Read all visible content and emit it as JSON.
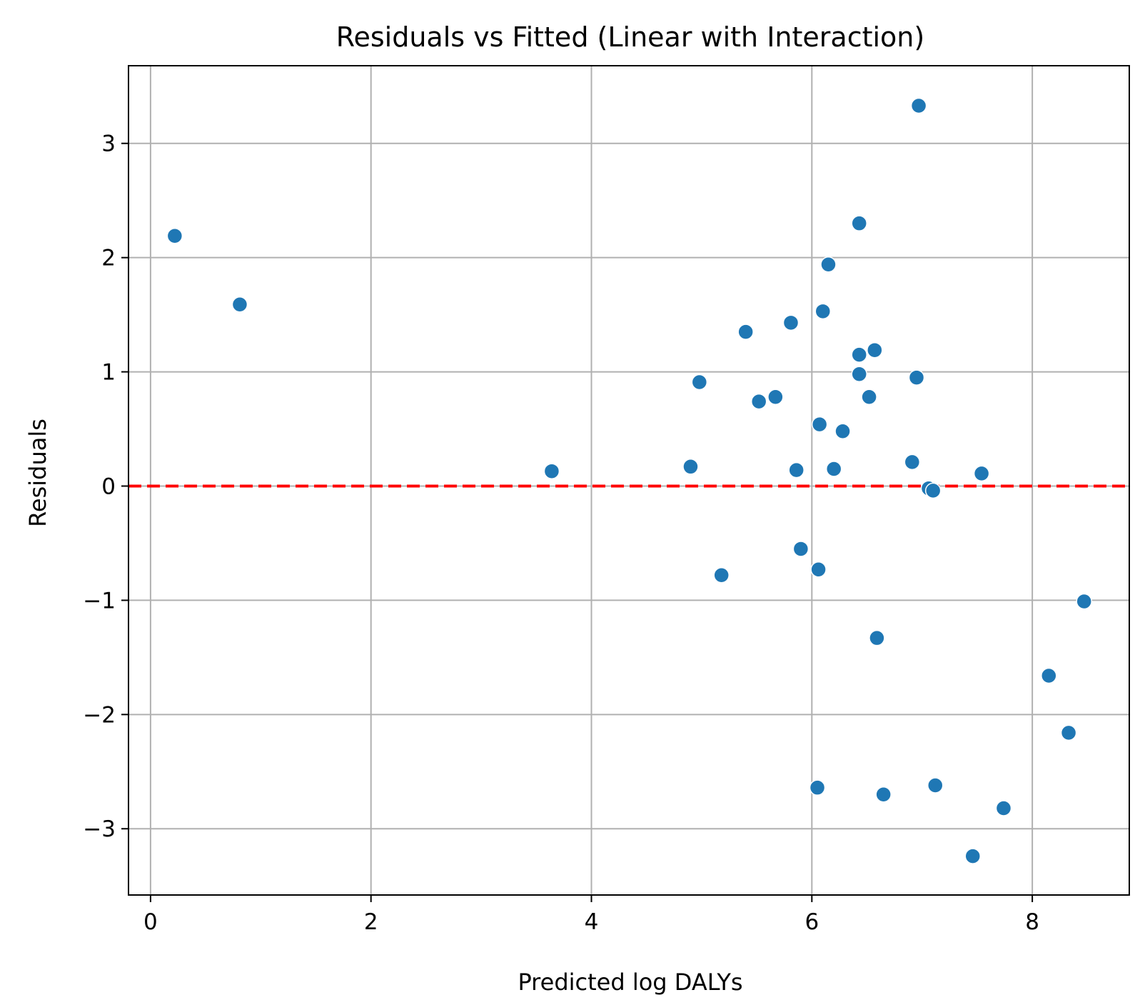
{
  "chart_data": {
    "type": "scatter",
    "title": "Residuals vs Fitted (Linear with Interaction)",
    "xlabel": "Predicted log DALYs",
    "ylabel": "Residuals",
    "xlim": [
      -0.2,
      8.88
    ],
    "ylim": [
      -3.58,
      3.68
    ],
    "xticks": [
      0,
      2,
      4,
      6,
      8
    ],
    "yticks": [
      -3,
      -2,
      -1,
      0,
      1,
      2,
      3
    ],
    "xtick_labels": [
      "0",
      "2",
      "4",
      "6",
      "8"
    ],
    "ytick_labels": [
      "−3",
      "−2",
      "−1",
      "0",
      "1",
      "2",
      "3"
    ],
    "grid": true,
    "legend": "none",
    "reference_line": {
      "y": 0,
      "style": "dashed",
      "color": "#ff0000"
    },
    "marker_color": "#1f77b4",
    "grid_color": "#b0b0b0",
    "series": [
      {
        "points": [
          {
            "x": 0.22,
            "y": 2.19
          },
          {
            "x": 0.81,
            "y": 1.59
          },
          {
            "x": 3.64,
            "y": 0.13
          },
          {
            "x": 4.9,
            "y": 0.17
          },
          {
            "x": 4.98,
            "y": 0.91
          },
          {
            "x": 5.18,
            "y": -0.78
          },
          {
            "x": 5.4,
            "y": 1.35
          },
          {
            "x": 5.52,
            "y": 0.74
          },
          {
            "x": 5.67,
            "y": 0.78
          },
          {
            "x": 5.81,
            "y": 1.43
          },
          {
            "x": 5.86,
            "y": 0.14
          },
          {
            "x": 5.9,
            "y": -0.55
          },
          {
            "x": 6.05,
            "y": -2.64
          },
          {
            "x": 6.06,
            "y": -0.73
          },
          {
            "x": 6.07,
            "y": 0.54
          },
          {
            "x": 6.1,
            "y": 1.53
          },
          {
            "x": 6.15,
            "y": 1.94
          },
          {
            "x": 6.2,
            "y": 0.15
          },
          {
            "x": 6.28,
            "y": 0.48
          },
          {
            "x": 6.43,
            "y": 2.3
          },
          {
            "x": 6.43,
            "y": 1.15
          },
          {
            "x": 6.43,
            "y": 0.98
          },
          {
            "x": 6.52,
            "y": 0.78
          },
          {
            "x": 6.57,
            "y": 1.19
          },
          {
            "x": 6.59,
            "y": -1.33
          },
          {
            "x": 6.65,
            "y": -2.7
          },
          {
            "x": 6.91,
            "y": 0.21
          },
          {
            "x": 6.95,
            "y": 0.95
          },
          {
            "x": 6.97,
            "y": 3.33
          },
          {
            "x": 7.06,
            "y": -0.02
          },
          {
            "x": 7.1,
            "y": -0.04
          },
          {
            "x": 7.12,
            "y": -2.62
          },
          {
            "x": 7.46,
            "y": -3.24
          },
          {
            "x": 7.54,
            "y": 0.11
          },
          {
            "x": 7.74,
            "y": -2.82
          },
          {
            "x": 8.15,
            "y": -1.66
          },
          {
            "x": 8.33,
            "y": -2.16
          },
          {
            "x": 8.47,
            "y": -1.01
          }
        ]
      }
    ]
  }
}
